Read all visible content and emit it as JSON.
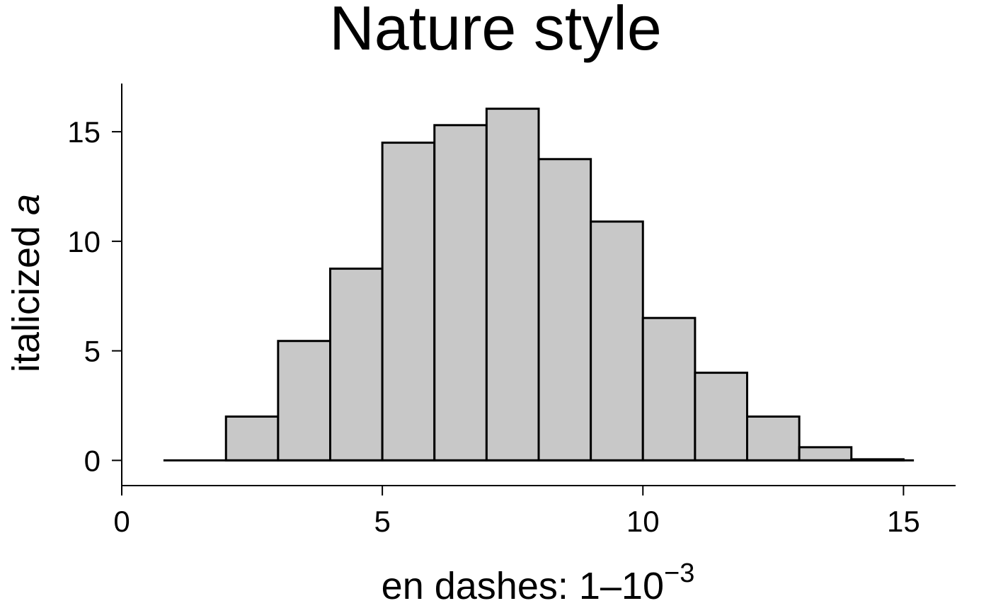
{
  "chart_data": {
    "type": "bar",
    "title": "Nature style",
    "xlabel": {
      "prefix": "en dashes: 1–10",
      "superscript": "−3"
    },
    "ylabel": {
      "prefix": "italicized ",
      "italic": "a"
    },
    "bin_edges": [
      2,
      3,
      4,
      5,
      6,
      7,
      8,
      9,
      10,
      11,
      12,
      13,
      14,
      15
    ],
    "values": [
      2.0,
      5.45,
      8.75,
      14.5,
      15.3,
      16.05,
      13.75,
      10.9,
      6.5,
      4.0,
      2.0,
      0.6,
      0.05
    ],
    "xlim": [
      0,
      16
    ],
    "ylim": [
      -1.15,
      17.2
    ],
    "baseline_range": [
      0.8,
      15.2
    ],
    "xticks": [
      0,
      5,
      10,
      15
    ],
    "yticks": [
      0,
      5,
      10,
      15
    ],
    "grid": false,
    "legend": "none",
    "colors": {
      "bar_fill": "#c8c8c8",
      "bar_edge": "#000000",
      "axis": "#000000",
      "background": "#ffffff"
    }
  }
}
